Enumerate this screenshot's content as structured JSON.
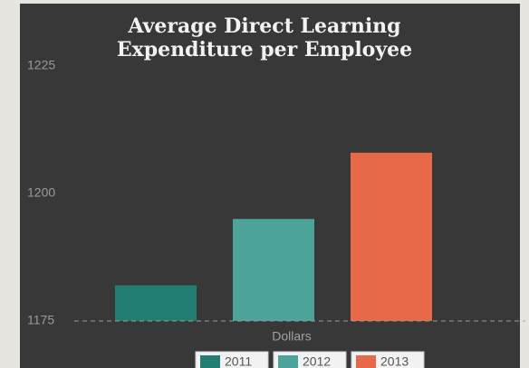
{
  "chart_data": {
    "type": "bar",
    "title": "Average Direct Learning Expenditure per Employee",
    "categories": [
      "Dollars"
    ],
    "series": [
      {
        "name": "2011",
        "color": "#237e72",
        "values": [
          1182
        ]
      },
      {
        "name": "2012",
        "color": "#4ba39a",
        "values": [
          1195
        ]
      },
      {
        "name": "2013",
        "color": "#e8694a",
        "values": [
          1208
        ]
      }
    ],
    "ylim": [
      1175,
      1225
    ],
    "yticks": [
      1175,
      1200,
      1225
    ],
    "grid": false,
    "legend": "bottom"
  }
}
